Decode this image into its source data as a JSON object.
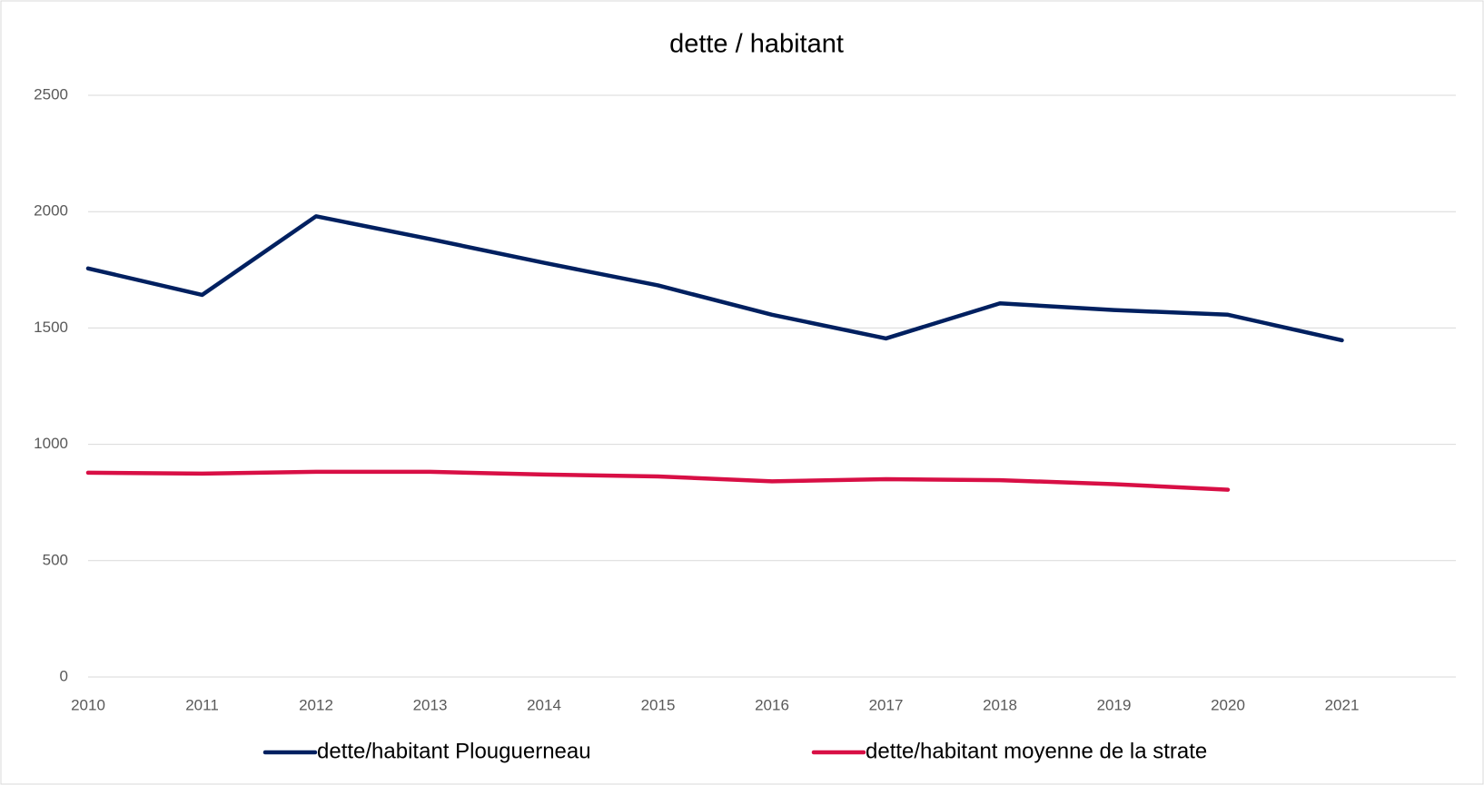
{
  "chart_data": {
    "type": "line",
    "title": "dette / habitant",
    "x": [
      2010,
      2011,
      2012,
      2013,
      2014,
      2015,
      2016,
      2017,
      2018,
      2019,
      2020,
      2021
    ],
    "series": [
      {
        "name": "dette/habitant Plouguerneau",
        "color": "#002060",
        "values": [
          1756,
          1642,
          1980,
          1882,
          1780,
          1683,
          1557,
          1455,
          1606,
          1577,
          1557,
          1447
        ]
      },
      {
        "name": "dette/habitant moyenne de la strate",
        "color": "#d80f45",
        "values": [
          878,
          874,
          882,
          882,
          870,
          862,
          841,
          850,
          846,
          829,
          805,
          null
        ]
      }
    ],
    "xlim": [
      2010,
      2022
    ],
    "xticks": [
      2010,
      2011,
      2012,
      2013,
      2014,
      2015,
      2016,
      2017,
      2018,
      2019,
      2020,
      2021
    ],
    "ylim": [
      0,
      2500
    ],
    "yticks": [
      0,
      500,
      1000,
      1500,
      2000,
      2500
    ],
    "grid": true,
    "legend": "bottom"
  }
}
